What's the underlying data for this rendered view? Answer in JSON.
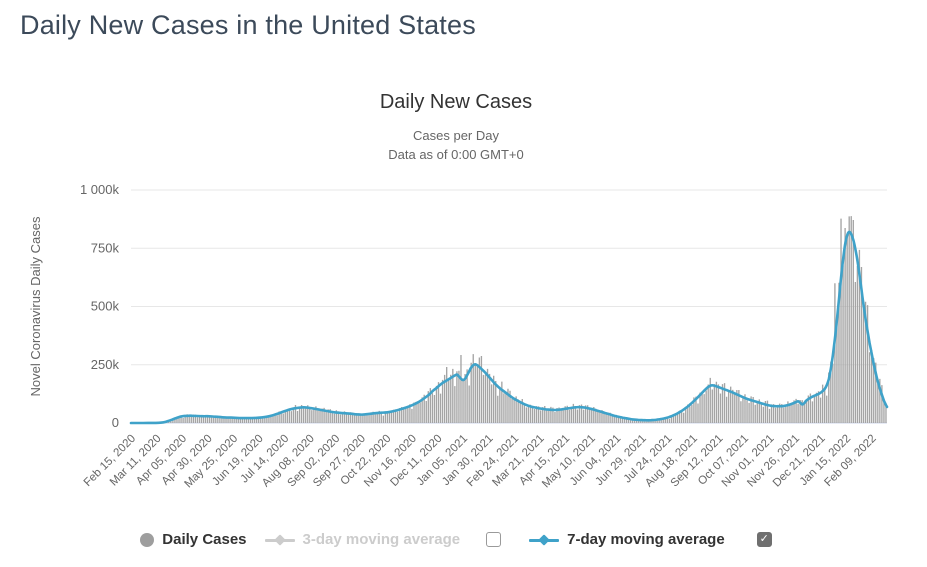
{
  "page": {
    "title": "Daily New Cases in the United States"
  },
  "chart": {
    "title": "Daily New Cases",
    "subtitle_line1": "Cases per Day",
    "subtitle_line2": "Data as of 0:00 GMT+0",
    "y_axis_title": "Novel Coronavirus Daily Cases"
  },
  "legend": {
    "daily_cases_label": "Daily Cases",
    "three_day_label": "3-day moving average",
    "seven_day_label": "7-day moving average",
    "three_day_checkbox_checked": false,
    "seven_day_checkbox_checked": true,
    "checkmark_glyph": "✓"
  },
  "colors": {
    "page_title": "#3c4a5a",
    "chart_title": "#333333",
    "subtitle": "#666666",
    "axis_label": "#666666",
    "gridline": "#e7e7e7",
    "x_axis_line": "#ccd6eb",
    "bars": "#a4a4a4",
    "seven_day_line": "#3fa2c9",
    "legend_disabled": "#cccccc",
    "legend_text": "#333333",
    "checkbox_checked_fill": "#6f6f6f"
  },
  "chart_data": {
    "type": "combo",
    "title": "Daily New Cases",
    "subtitle": [
      "Cases per Day",
      "Data as of 0:00 GMT+0"
    ],
    "ylabel": "Novel Coronavirus Daily Cases",
    "unit": "thousands of cases",
    "ylim_thousands": [
      0,
      1000
    ],
    "y_ticks": [
      {
        "value": 0,
        "label": "0"
      },
      {
        "value": 250,
        "label": "250k"
      },
      {
        "value": 500,
        "label": "500k"
      },
      {
        "value": 750,
        "label": "750k"
      },
      {
        "value": 1000,
        "label": "1 000k"
      }
    ],
    "x_unit": "days since Feb 15, 2020",
    "x_tick_interval_days": 25,
    "total_days": 740,
    "x_tick_labels": [
      "Feb 15, 2020",
      "Mar 11, 2020",
      "Apr 05, 2020",
      "Apr 30, 2020",
      "May 25, 2020",
      "Jun 19, 2020",
      "Jul 14, 2020",
      "Aug 08, 2020",
      "Sep 02, 2020",
      "Sep 27, 2020",
      "Oct 22, 2020",
      "Nov 16, 2020",
      "Dec 11, 2020",
      "Jan 05, 2021",
      "Jan 30, 2021",
      "Feb 24, 2021",
      "Mar 21, 2021",
      "Apr 15, 2021",
      "May 10, 2021",
      "Jun 04, 2021",
      "Jun 29, 2021",
      "Jul 24, 2021",
      "Aug 18, 2021",
      "Sep 12, 2021",
      "Oct 07, 2021",
      "Nov 01, 2021",
      "Nov 26, 2021",
      "Dec 21, 2021",
      "Jan 15, 2022",
      "Feb 09, 2022"
    ],
    "series": [
      {
        "name": "Daily Cases",
        "type": "column",
        "color": "#a4a4a4",
        "visible": true,
        "note": "Daily reported cases; bars oscillate around the 7-day average with weekend reporting dips.",
        "spike_days_thousands": [
          [
            309,
            245
          ],
          [
            322,
            298
          ],
          [
            688,
            612
          ],
          [
            695,
            895
          ],
          [
            702,
            905
          ]
        ]
      },
      {
        "name": "3-day moving average",
        "type": "line",
        "color": "#cccccc",
        "visible": false,
        "points": []
      },
      {
        "name": "7-day moving average",
        "type": "line",
        "color": "#3fa2c9",
        "visible": true,
        "points": [
          [
            0,
            0
          ],
          [
            12,
            0
          ],
          [
            20,
            0.4
          ],
          [
            27,
            1
          ],
          [
            32,
            3
          ],
          [
            36,
            8
          ],
          [
            40,
            14
          ],
          [
            44,
            21
          ],
          [
            48,
            27
          ],
          [
            52,
            30
          ],
          [
            56,
            31
          ],
          [
            60,
            31
          ],
          [
            65,
            30
          ],
          [
            70,
            29
          ],
          [
            75,
            29
          ],
          [
            80,
            28
          ],
          [
            86,
            26
          ],
          [
            92,
            24
          ],
          [
            98,
            23
          ],
          [
            104,
            22
          ],
          [
            110,
            21
          ],
          [
            116,
            21
          ],
          [
            122,
            22
          ],
          [
            128,
            24
          ],
          [
            133,
            27
          ],
          [
            138,
            32
          ],
          [
            143,
            39
          ],
          [
            148,
            47
          ],
          [
            153,
            55
          ],
          [
            158,
            61
          ],
          [
            163,
            65
          ],
          [
            167,
            67
          ],
          [
            171,
            67
          ],
          [
            176,
            64
          ],
          [
            181,
            60
          ],
          [
            186,
            56
          ],
          [
            191,
            52
          ],
          [
            197,
            47
          ],
          [
            203,
            44
          ],
          [
            209,
            42
          ],
          [
            215,
            40
          ],
          [
            221,
            37
          ],
          [
            227,
            36
          ],
          [
            233,
            39
          ],
          [
            239,
            42
          ],
          [
            245,
            44
          ],
          [
            251,
            46
          ],
          [
            257,
            51
          ],
          [
            263,
            58
          ],
          [
            269,
            66
          ],
          [
            275,
            76
          ],
          [
            281,
            89
          ],
          [
            286,
            103
          ],
          [
            291,
            119
          ],
          [
            296,
            140
          ],
          [
            299,
            150
          ],
          [
            302,
            162
          ],
          [
            305,
            172
          ],
          [
            308,
            180
          ],
          [
            311,
            188
          ],
          [
            314,
            196
          ],
          [
            317,
            204
          ],
          [
            319,
            208
          ],
          [
            321,
            200
          ],
          [
            323,
            190
          ],
          [
            325,
            184
          ],
          [
            327,
            190
          ],
          [
            329,
            205
          ],
          [
            331,
            222
          ],
          [
            333,
            238
          ],
          [
            335,
            248
          ],
          [
            337,
            252
          ],
          [
            339,
            248
          ],
          [
            341,
            240
          ],
          [
            344,
            228
          ],
          [
            347,
            215
          ],
          [
            350,
            200
          ],
          [
            353,
            185
          ],
          [
            356,
            170
          ],
          [
            359,
            157
          ],
          [
            362,
            146
          ],
          [
            365,
            136
          ],
          [
            368,
            126
          ],
          [
            371,
            116
          ],
          [
            374,
            107
          ],
          [
            377,
            99
          ],
          [
            380,
            92
          ],
          [
            383,
            85
          ],
          [
            386,
            79
          ],
          [
            389,
            74
          ],
          [
            392,
            70
          ],
          [
            395,
            67
          ],
          [
            398,
            64
          ],
          [
            401,
            62
          ],
          [
            404,
            60
          ],
          [
            407,
            58
          ],
          [
            410,
            57
          ],
          [
            413,
            56
          ],
          [
            416,
            56
          ],
          [
            419,
            57
          ],
          [
            422,
            59
          ],
          [
            425,
            61
          ],
          [
            428,
            63
          ],
          [
            431,
            65
          ],
          [
            434,
            67
          ],
          [
            437,
            68
          ],
          [
            440,
            68
          ],
          [
            443,
            67
          ],
          [
            446,
            65
          ],
          [
            449,
            62
          ],
          [
            452,
            59
          ],
          [
            455,
            55
          ],
          [
            458,
            51
          ],
          [
            461,
            47
          ],
          [
            464,
            43
          ],
          [
            467,
            39
          ],
          [
            470,
            35
          ],
          [
            473,
            31
          ],
          [
            476,
            28
          ],
          [
            479,
            25
          ],
          [
            482,
            22
          ],
          [
            485,
            20
          ],
          [
            488,
            17.5
          ],
          [
            491,
            15.5
          ],
          [
            494,
            14
          ],
          [
            497,
            13
          ],
          [
            500,
            12.3
          ],
          [
            503,
            11.9
          ],
          [
            506,
            11.8
          ],
          [
            509,
            12.1
          ],
          [
            512,
            13
          ],
          [
            515,
            14.5
          ],
          [
            518,
            16.5
          ],
          [
            521,
            19
          ],
          [
            524,
            22
          ],
          [
            527,
            26
          ],
          [
            530,
            31
          ],
          [
            533,
            37
          ],
          [
            536,
            44
          ],
          [
            539,
            52
          ],
          [
            542,
            61
          ],
          [
            545,
            71
          ],
          [
            548,
            82
          ],
          [
            551,
            94
          ],
          [
            554,
            107
          ],
          [
            557,
            120
          ],
          [
            560,
            134
          ],
          [
            563,
            147
          ],
          [
            565,
            155
          ],
          [
            567,
            160
          ],
          [
            569,
            162
          ],
          [
            571,
            160
          ],
          [
            574,
            156
          ],
          [
            577,
            151
          ],
          [
            580,
            146
          ],
          [
            583,
            141
          ],
          [
            586,
            136
          ],
          [
            589,
            131
          ],
          [
            592,
            125
          ],
          [
            595,
            119
          ],
          [
            598,
            113
          ],
          [
            601,
            107
          ],
          [
            604,
            102
          ],
          [
            607,
            98
          ],
          [
            610,
            94
          ],
          [
            613,
            90
          ],
          [
            616,
            86
          ],
          [
            619,
            82
          ],
          [
            622,
            78
          ],
          [
            625,
            75
          ],
          [
            628,
            73
          ],
          [
            631,
            72
          ],
          [
            634,
            72
          ],
          [
            637,
            72
          ],
          [
            640,
            74
          ],
          [
            643,
            77
          ],
          [
            646,
            81
          ],
          [
            649,
            86
          ],
          [
            651,
            90
          ],
          [
            653,
            93
          ],
          [
            655,
            87
          ],
          [
            657,
            80
          ],
          [
            659,
            85
          ],
          [
            661,
            96
          ],
          [
            664,
            106
          ],
          [
            667,
            113
          ],
          [
            670,
            119
          ],
          [
            673,
            125
          ],
          [
            676,
            133
          ],
          [
            679,
            146
          ],
          [
            681,
            162
          ],
          [
            683,
            188
          ],
          [
            685,
            232
          ],
          [
            687,
            292
          ],
          [
            689,
            362
          ],
          [
            691,
            442
          ],
          [
            693,
            532
          ],
          [
            695,
            622
          ],
          [
            697,
            702
          ],
          [
            699,
            766
          ],
          [
            701,
            806
          ],
          [
            703,
            820
          ],
          [
            705,
            810
          ],
          [
            707,
            786
          ],
          [
            709,
            748
          ],
          [
            711,
            698
          ],
          [
            713,
            638
          ],
          [
            715,
            573
          ],
          [
            717,
            508
          ],
          [
            719,
            448
          ],
          [
            721,
            393
          ],
          [
            723,
            343
          ],
          [
            725,
            297
          ],
          [
            727,
            254
          ],
          [
            729,
            214
          ],
          [
            731,
            179
          ],
          [
            733,
            149
          ],
          [
            735,
            121
          ],
          [
            737,
            96
          ],
          [
            739,
            77
          ],
          [
            740,
            69
          ]
        ]
      }
    ],
    "legend_position": "bottom-center",
    "grid": true
  }
}
